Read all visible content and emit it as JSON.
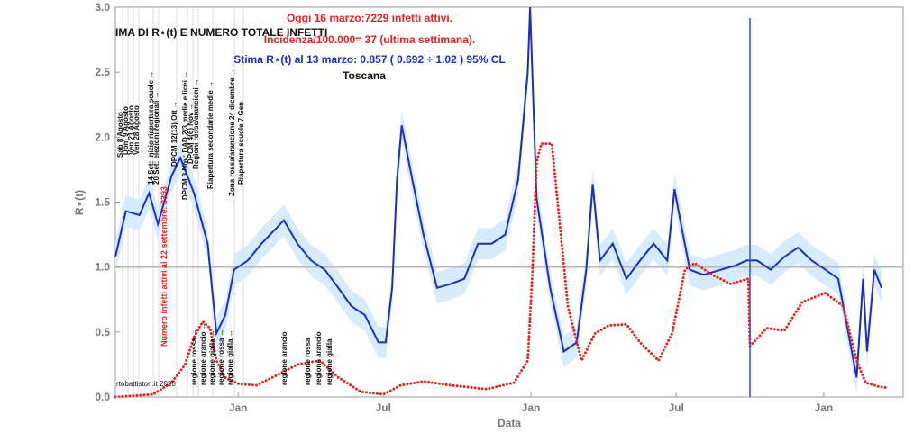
{
  "chart_data": {
    "type": "line",
    "title": "Oggi 16 marzo:7229 infetti attivi.",
    "subtitle": "Incidenza/100.000= 37 (ultima settimana).",
    "header_left": "IMA DI R⋆(t) E NUMERO TOTALE INFETTI",
    "estimate": "Stima R⋆(t) al 13 marzo: 0.857 ( 0.692 ÷ 1.02 ) 95% CL",
    "region": "Toscana",
    "x_label": "Data",
    "y_label": "R⋆(t)",
    "red_label": "Numero infetti attivi al 22 settembre: 3393",
    "watermark": "rtobattiston.it 2020",
    "xlim": [
      0,
      982
    ],
    "xticks": [
      {
        "value": 153,
        "label": "Jan"
      },
      {
        "value": 334,
        "label": "Jul"
      },
      {
        "value": 518,
        "label": "Jan"
      },
      {
        "value": 699,
        "label": "Jul"
      },
      {
        "value": 883,
        "label": "Jan"
      }
    ],
    "ylim": [
      0,
      3
    ],
    "yticks": [
      {
        "value": 0,
        "label": "0.0"
      },
      {
        "value": 0.5,
        "label": "0.5"
      },
      {
        "value": 1,
        "label": "1.0"
      },
      {
        "value": 1.5,
        "label": "1.5"
      },
      {
        "value": 2,
        "label": "2.0"
      },
      {
        "value": 2.5,
        "label": "2.5"
      },
      {
        "value": 3,
        "label": "3.0"
      }
    ],
    "hline": 1,
    "hline_color": "#bbbbbb",
    "band": {
      "color": "#d6ebfb",
      "x": [
        0,
        13,
        30,
        42,
        53,
        70,
        81,
        98,
        115,
        126,
        137,
        148,
        165,
        182,
        193,
        210,
        227,
        244,
        261,
        278,
        294,
        311,
        328,
        337,
        345,
        351,
        357,
        368,
        384,
        401,
        418,
        435,
        452,
        469,
        486,
        502,
        514,
        517,
        525,
        542,
        559,
        575,
        587,
        595,
        604,
        620,
        637,
        654,
        671,
        688,
        697,
        705,
        716,
        733,
        755,
        772,
        787,
        800,
        817,
        834,
        851,
        868,
        885,
        901,
        918,
        924,
        932,
        937,
        946,
        955
      ],
      "lower": [
        0.96,
        1.31,
        1.28,
        1.45,
        1.21,
        1.58,
        1.72,
        1.45,
        1.06,
        0.37,
        0.51,
        0.86,
        0.93,
        1.06,
        1.13,
        1.24,
        1.06,
        0.93,
        0.86,
        0.72,
        0.58,
        0.51,
        0.3,
        0.3,
        0.72,
        1.55,
        1.97,
        1.62,
        1.13,
        0.72,
        0.75,
        0.79,
        1.06,
        1.06,
        1.13,
        1.55,
        2.38,
        2.88,
        1.41,
        0.72,
        0.23,
        0.3,
        0.86,
        1.52,
        0.93,
        1.06,
        0.79,
        0.93,
        1.06,
        0.93,
        1.48,
        1.21,
        0.86,
        0.82,
        0.86,
        0.89,
        0.93,
        0.93,
        0.86,
        0.96,
        1.03,
        0.93,
        0.86,
        0.79,
        0.23,
        0.03,
        0.79,
        0.23,
        0.86,
        0.72
      ],
      "upper": [
        1.2,
        1.55,
        1.52,
        1.69,
        1.45,
        1.82,
        1.96,
        1.69,
        1.3,
        0.61,
        0.75,
        1.1,
        1.17,
        1.3,
        1.37,
        1.48,
        1.3,
        1.17,
        1.1,
        0.96,
        0.82,
        0.75,
        0.54,
        0.54,
        0.96,
        1.79,
        2.21,
        1.86,
        1.37,
        0.96,
        0.99,
        1.03,
        1.3,
        1.3,
        1.37,
        1.79,
        2.62,
        3.0,
        1.65,
        0.96,
        0.47,
        0.54,
        1.1,
        1.76,
        1.17,
        1.3,
        1.03,
        1.17,
        1.3,
        1.17,
        1.72,
        1.45,
        1.1,
        1.06,
        1.1,
        1.13,
        1.17,
        1.17,
        1.1,
        1.2,
        1.27,
        1.17,
        1.1,
        1.03,
        0.47,
        0.27,
        1.03,
        0.47,
        1.1,
        0.96
      ]
    },
    "series": [
      {
        "color": "#1a2fc0",
        "style": "line",
        "x": [
          0,
          13,
          30,
          42,
          53,
          70,
          81,
          98,
          115,
          126,
          137,
          148,
          165,
          182,
          193,
          210,
          227,
          244,
          261,
          278,
          294,
          311,
          328,
          337,
          345,
          351,
          357,
          368,
          384,
          401,
          418,
          435,
          452,
          469,
          486,
          502,
          514,
          517,
          525,
          542,
          559,
          575,
          587,
          595,
          604,
          620,
          637,
          654,
          671,
          688,
          697,
          705,
          716,
          733,
          755,
          772,
          787,
          800,
          817,
          834,
          851,
          868,
          885,
          901,
          918,
          924,
          932,
          937,
          946,
          955
        ],
        "values": [
          1.08,
          1.43,
          1.4,
          1.57,
          1.33,
          1.7,
          1.84,
          1.57,
          1.18,
          0.49,
          0.63,
          0.98,
          1.05,
          1.18,
          1.25,
          1.36,
          1.18,
          1.05,
          0.98,
          0.84,
          0.7,
          0.63,
          0.42,
          0.42,
          0.84,
          1.67,
          2.09,
          1.74,
          1.25,
          0.84,
          0.87,
          0.91,
          1.18,
          1.18,
          1.25,
          1.67,
          2.5,
          3.0,
          1.53,
          0.84,
          0.35,
          0.42,
          0.98,
          1.64,
          1.05,
          1.18,
          0.91,
          1.05,
          1.18,
          1.05,
          1.6,
          1.33,
          0.98,
          0.94,
          0.98,
          1.01,
          1.05,
          1.05,
          0.98,
          1.08,
          1.15,
          1.05,
          0.98,
          0.91,
          0.35,
          0.15,
          0.91,
          0.35,
          0.98,
          0.84
        ]
      },
      {
        "color": "#e8221c",
        "style": "dots",
        "x": [
          0,
          47,
          70,
          87,
          98,
          109,
          118,
          126,
          137,
          154,
          176,
          199,
          227,
          255,
          278,
          306,
          334,
          356,
          384,
          418,
          463,
          497,
          514,
          520,
          525,
          531,
          544,
          553,
          564,
          581,
          598,
          615,
          637,
          654,
          677,
          694,
          710,
          722,
          744,
          767,
          789,
          791,
          812,
          834,
          856,
          885,
          907,
          924,
          935,
          952,
          963
        ],
        "values": [
          0,
          0.02,
          0.11,
          0.25,
          0.46,
          0.58,
          0.53,
          0.28,
          0.15,
          0.1,
          0.09,
          0.16,
          0.25,
          0.28,
          0.15,
          0.04,
          0.02,
          0.09,
          0.12,
          0.09,
          0.06,
          0.11,
          0.28,
          0.98,
          1.81,
          1.95,
          1.95,
          1.39,
          0.7,
          0.28,
          0.49,
          0.55,
          0.56,
          0.42,
          0.28,
          0.49,
          0.98,
          1.03,
          0.94,
          0.87,
          0.91,
          0.39,
          0.53,
          0.51,
          0.73,
          0.8,
          0.7,
          0.28,
          0.11,
          0.08,
          0.07
        ]
      }
    ],
    "annotations": [
      "Sab 8 Agosto",
      "Dom 9 Agosto",
      "Ven 21 Agosto",
      "Ven 28 Agosto",
      "14 Set: inizio riapertura scuole →",
      "20 Set: elezioni regionali →",
      "DPCM 12(13) Ott →",
      "DPCM 3 Nov: DAD 2/3 medie e licei →",
      "DPCM 4(6) Nov →",
      "Regioni rosse/arancioni →",
      "Riapertura secondarie medie →",
      "Zona rossa/arancione 24 dicembre →",
      "Riapertura scuole 7 Gen →"
    ],
    "bottom_annotations": [
      "regione rossa ↔",
      "regione arancio ↔",
      "regione gialla ↔",
      "regione rossa ↔",
      "regione gialla ↔",
      "regione arancio",
      "regione rossa",
      "regione arancio",
      "regione gialla"
    ]
  }
}
